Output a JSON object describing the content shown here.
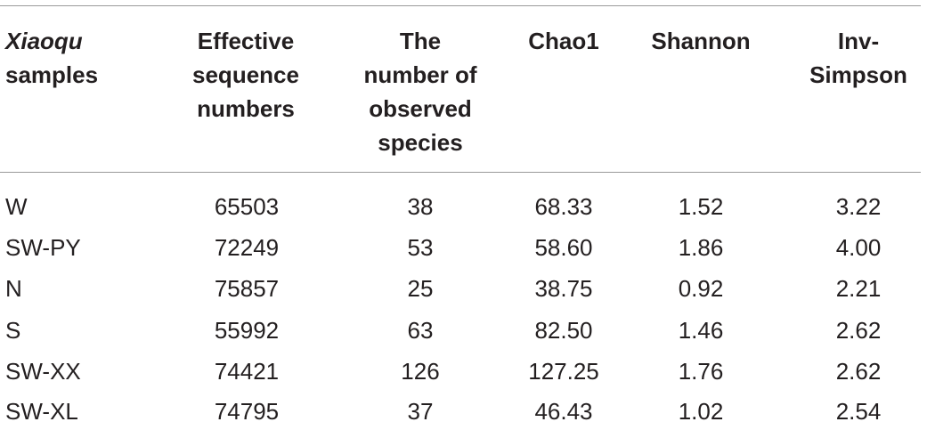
{
  "table": {
    "headers": {
      "col1_line1": "Xiaoqu",
      "col1_line2": "samples",
      "col2": [
        "Effective",
        "sequence",
        "numbers"
      ],
      "col3": [
        "The",
        "number of",
        "observed",
        "species"
      ],
      "col4": "Chao1",
      "col5": "Shannon",
      "col6": [
        "Inv-",
        "Simpson"
      ]
    },
    "rows": [
      [
        "W",
        "65503",
        "38",
        "68.33",
        "1.52",
        "3.22"
      ],
      [
        "SW-PY",
        "72249",
        "53",
        "58.60",
        "1.86",
        "4.00"
      ],
      [
        "N",
        "75857",
        "25",
        "38.75",
        "0.92",
        "2.21"
      ],
      [
        "S",
        "55992",
        "63",
        "82.50",
        "1.46",
        "2.62"
      ],
      [
        "SW-XX",
        "74421",
        "126",
        "127.25",
        "1.76",
        "2.62"
      ],
      [
        "SW-XL",
        "74795",
        "37",
        "46.43",
        "1.02",
        "2.54"
      ]
    ]
  }
}
